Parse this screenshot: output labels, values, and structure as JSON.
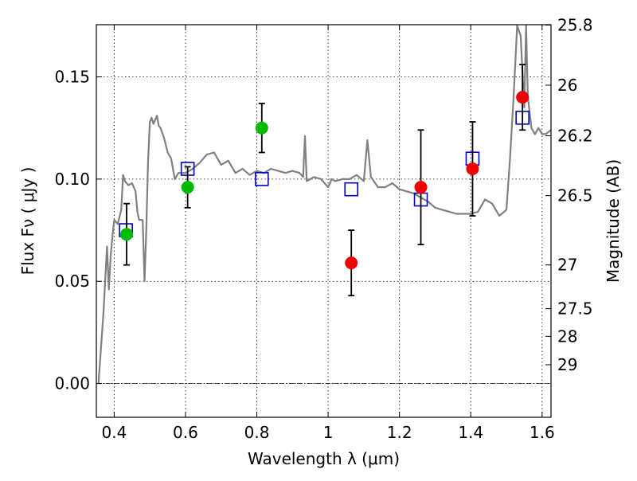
{
  "chart_data": {
    "type": "scatter",
    "xlabel": "Wavelength  λ (μm)",
    "ylabel": "Flux  Fν  ( μJy )",
    "y2label": "Magnitude (AB)",
    "xlim": [
      0.35,
      1.625
    ],
    "ylim": [
      -0.0165,
      0.1755
    ],
    "grid": true,
    "xticks": [
      0.4,
      0.6,
      0.8,
      1.0,
      1.2,
      1.4,
      1.6
    ],
    "xtick_labels": [
      "0.4",
      "0.6",
      "0.8",
      "1",
      "1.2",
      "1.4",
      "1.6"
    ],
    "yticks": [
      0.0,
      0.05,
      0.1,
      0.15
    ],
    "ytick_labels": [
      "0.00",
      "0.05",
      "0.10",
      "0.15"
    ],
    "y2ticks": [
      {
        "label": "25.8",
        "flux": 0.1753
      },
      {
        "label": "26",
        "flux": 0.1459
      },
      {
        "label": "26.2",
        "flux": 0.1212
      },
      {
        "label": "26.5",
        "flux": 0.0919
      },
      {
        "label": "27",
        "flux": 0.058
      },
      {
        "label": "27.5",
        "flux": 0.0366
      },
      {
        "label": "28",
        "flux": 0.0231
      },
      {
        "label": "29",
        "flux": 0.0092
      }
    ],
    "series": [
      {
        "marker": "square",
        "color": "#0000cc",
        "points": [
          {
            "x": 0.433,
            "y": 0.075
          },
          {
            "x": 0.606,
            "y": 0.105
          },
          {
            "x": 0.814,
            "y": 0.1
          },
          {
            "x": 1.065,
            "y": 0.095
          },
          {
            "x": 1.26,
            "y": 0.09
          },
          {
            "x": 1.405,
            "y": 0.11
          },
          {
            "x": 1.545,
            "y": 0.13
          }
        ]
      },
      {
        "marker": "circle",
        "color": "#00bb00",
        "points": [
          {
            "x": 0.435,
            "y": 0.073,
            "err": 0.015
          },
          {
            "x": 0.606,
            "y": 0.096,
            "err": 0.01
          },
          {
            "x": 0.814,
            "y": 0.125,
            "err": 0.012
          }
        ]
      },
      {
        "marker": "circle",
        "color": "#ee0000",
        "points": [
          {
            "x": 1.065,
            "y": 0.059,
            "err": 0.016
          },
          {
            "x": 1.26,
            "y": 0.096,
            "err": 0.028
          },
          {
            "x": 1.405,
            "y": 0.105,
            "err": 0.023
          },
          {
            "x": 1.545,
            "y": 0.14,
            "err": 0.016
          }
        ]
      },
      {
        "type": "line",
        "color": "#808080",
        "x": [
          0.356,
          0.36,
          0.37,
          0.38,
          0.385,
          0.39,
          0.395,
          0.4,
          0.41,
          0.42,
          0.425,
          0.43,
          0.44,
          0.45,
          0.455,
          0.46,
          0.465,
          0.47,
          0.48,
          0.485,
          0.49,
          0.495,
          0.5,
          0.505,
          0.51,
          0.52,
          0.525,
          0.53,
          0.54,
          0.55,
          0.56,
          0.57,
          0.58,
          0.6,
          0.62,
          0.64,
          0.66,
          0.68,
          0.7,
          0.72,
          0.74,
          0.76,
          0.78,
          0.8,
          0.82,
          0.84,
          0.86,
          0.88,
          0.9,
          0.92,
          0.93,
          0.935,
          0.94,
          0.96,
          0.98,
          1.0,
          1.01,
          1.02,
          1.04,
          1.06,
          1.08,
          1.1,
          1.11,
          1.12,
          1.14,
          1.16,
          1.18,
          1.2,
          1.22,
          1.24,
          1.26,
          1.28,
          1.3,
          1.32,
          1.34,
          1.36,
          1.38,
          1.4,
          1.42,
          1.44,
          1.46,
          1.48,
          1.5,
          1.51,
          1.52,
          1.53,
          1.54,
          1.55,
          1.555,
          1.56,
          1.57,
          1.58,
          1.59,
          1.6,
          1.61,
          1.625
        ],
        "y": [
          0.0,
          0.01,
          0.035,
          0.067,
          0.046,
          0.062,
          0.072,
          0.08,
          0.078,
          0.085,
          0.102,
          0.099,
          0.097,
          0.098,
          0.096,
          0.094,
          0.084,
          0.08,
          0.08,
          0.05,
          0.075,
          0.108,
          0.128,
          0.13,
          0.127,
          0.131,
          0.126,
          0.125,
          0.12,
          0.113,
          0.11,
          0.1,
          0.103,
          0.103,
          0.105,
          0.108,
          0.112,
          0.113,
          0.107,
          0.109,
          0.103,
          0.105,
          0.102,
          0.104,
          0.103,
          0.105,
          0.104,
          0.103,
          0.104,
          0.103,
          0.101,
          0.121,
          0.099,
          0.101,
          0.1,
          0.096,
          0.1,
          0.099,
          0.1,
          0.1,
          0.102,
          0.099,
          0.119,
          0.101,
          0.096,
          0.096,
          0.098,
          0.095,
          0.094,
          0.093,
          0.091,
          0.089,
          0.086,
          0.085,
          0.084,
          0.083,
          0.083,
          0.083,
          0.084,
          0.09,
          0.088,
          0.082,
          0.085,
          0.11,
          0.14,
          0.175,
          0.17,
          0.135,
          0.175,
          0.14,
          0.125,
          0.122,
          0.125,
          0.122,
          0.122,
          0.124
        ]
      }
    ]
  }
}
